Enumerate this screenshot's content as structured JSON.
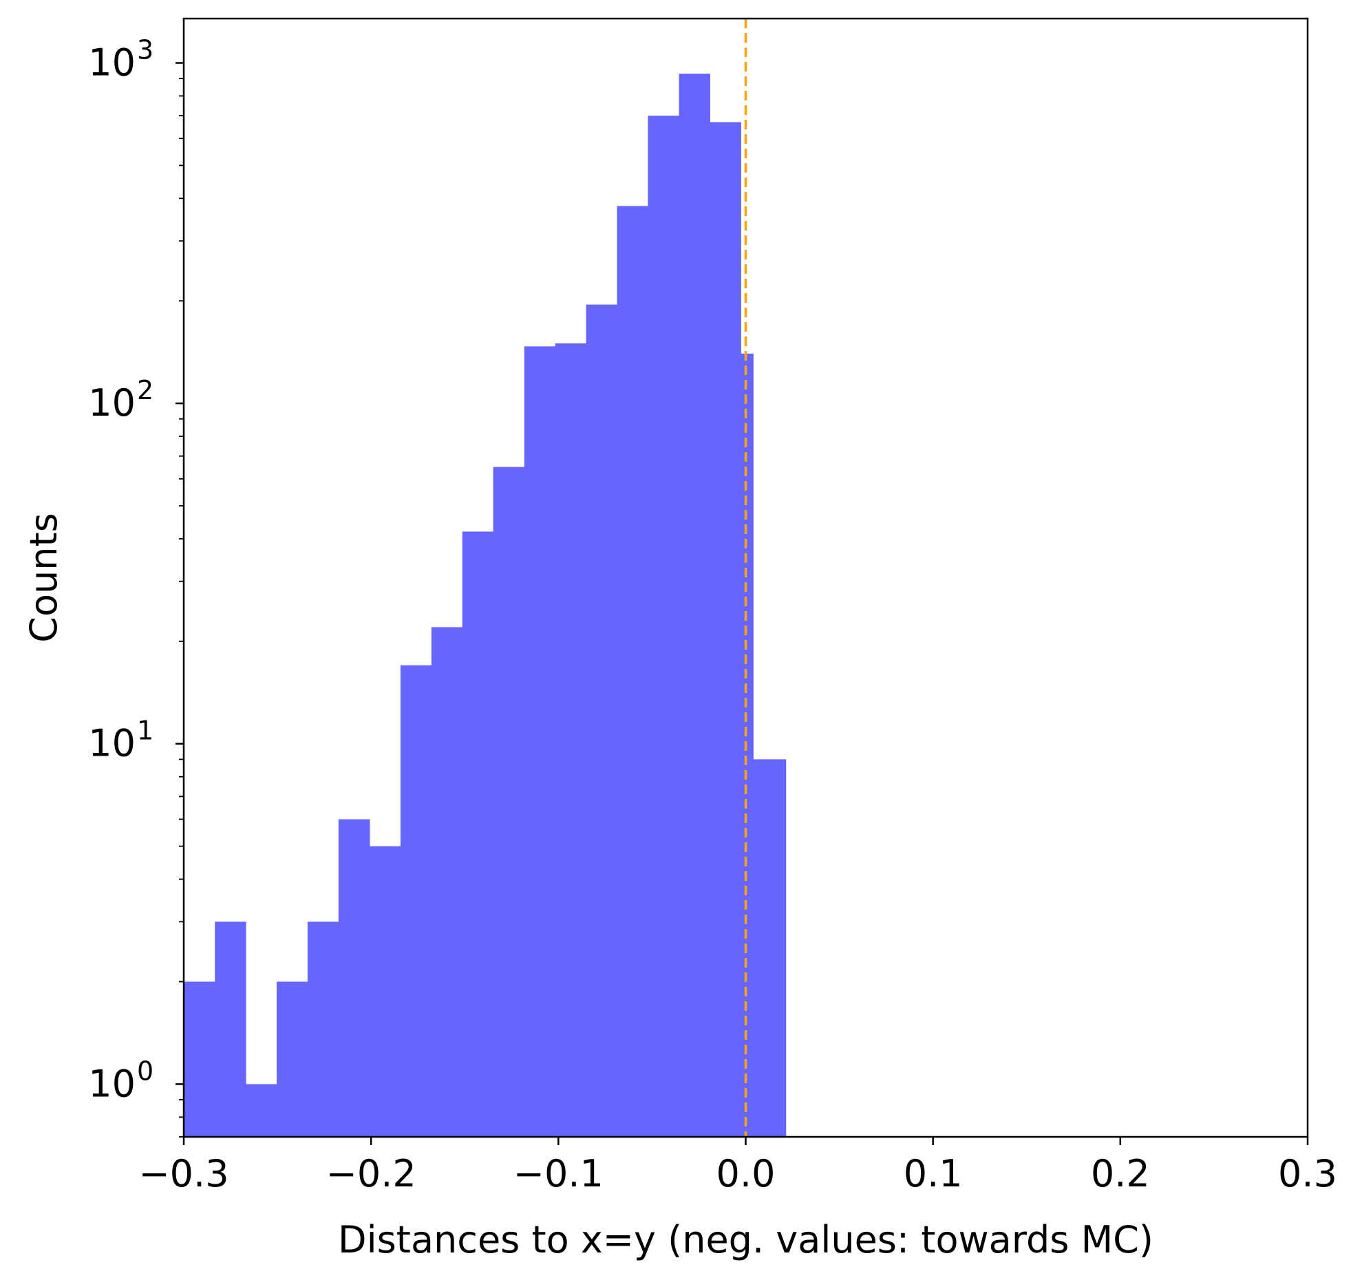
{
  "chart_data": {
    "type": "bar",
    "subtype": "histogram",
    "title": "",
    "xlabel": "Distances to x=y (neg. values: towards MC)",
    "ylabel": "Counts",
    "xlim": [
      -0.3,
      0.3
    ],
    "ylim": [
      0.7,
      1350
    ],
    "yscale": "log",
    "grid": false,
    "bar_color": "#6666ff",
    "bins": [
      {
        "x0": -0.3,
        "x1": -0.2834,
        "count": 2
      },
      {
        "x0": -0.2834,
        "x1": -0.2669,
        "count": 3
      },
      {
        "x0": -0.2669,
        "x1": -0.2504,
        "count": 1
      },
      {
        "x0": -0.2504,
        "x1": -0.2339,
        "count": 2
      },
      {
        "x0": -0.2339,
        "x1": -0.2174,
        "count": 3
      },
      {
        "x0": -0.2174,
        "x1": -0.2008,
        "count": 6
      },
      {
        "x0": -0.2008,
        "x1": -0.1843,
        "count": 5
      },
      {
        "x0": -0.1843,
        "x1": -0.1678,
        "count": 17
      },
      {
        "x0": -0.1678,
        "x1": -0.1513,
        "count": 22
      },
      {
        "x0": -0.1513,
        "x1": -0.1348,
        "count": 42
      },
      {
        "x0": -0.1348,
        "x1": -0.1182,
        "count": 65
      },
      {
        "x0": -0.1182,
        "x1": -0.1017,
        "count": 147
      },
      {
        "x0": -0.1017,
        "x1": -0.0852,
        "count": 150
      },
      {
        "x0": -0.0852,
        "x1": -0.0687,
        "count": 195
      },
      {
        "x0": -0.0687,
        "x1": -0.0522,
        "count": 380
      },
      {
        "x0": -0.0522,
        "x1": -0.0356,
        "count": 700
      },
      {
        "x0": -0.0356,
        "x1": -0.0191,
        "count": 930
      },
      {
        "x0": -0.0191,
        "x1": -0.0026,
        "count": 670
      },
      {
        "x0": -0.0026,
        "x1": 0.004,
        "count": 140
      },
      {
        "x0": 0.004,
        "x1": 0.0214,
        "count": 9
      }
    ],
    "reference_line": {
      "x": 0.0,
      "color": "#ffa500",
      "style": "dashed"
    },
    "x_ticks": [
      {
        "value": -0.3,
        "label": "−0.3"
      },
      {
        "value": -0.2,
        "label": "−0.2"
      },
      {
        "value": -0.1,
        "label": "−0.1"
      },
      {
        "value": 0.0,
        "label": "0.0"
      },
      {
        "value": 0.1,
        "label": "0.1"
      },
      {
        "value": 0.2,
        "label": "0.2"
      },
      {
        "value": 0.3,
        "label": "0.3"
      }
    ],
    "y_ticks": [
      {
        "value": 1,
        "base": "10",
        "exp": "0"
      },
      {
        "value": 10,
        "base": "10",
        "exp": "1"
      },
      {
        "value": 100,
        "base": "10",
        "exp": "2"
      },
      {
        "value": 1000,
        "base": "10",
        "exp": "3"
      }
    ]
  }
}
